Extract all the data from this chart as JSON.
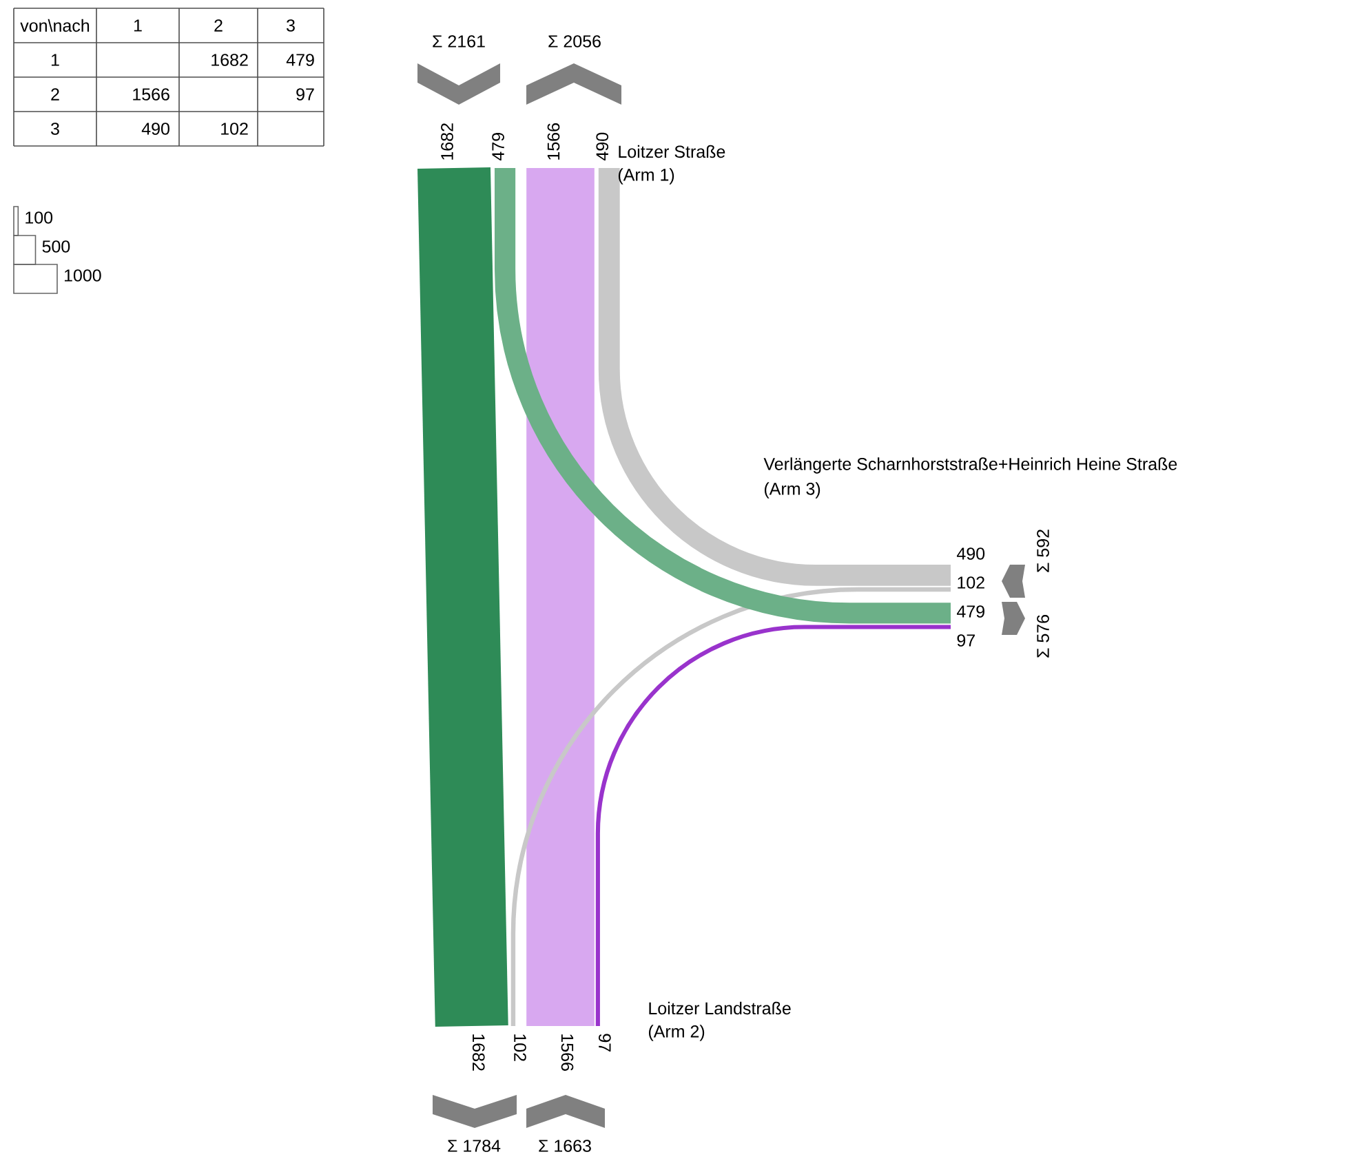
{
  "chart_data": [
    {
      "type": "heatmap",
      "legend_title": "von\\nach",
      "categories": [
        "1",
        "2",
        "3"
      ],
      "y_categories": [
        "1",
        "2",
        "3"
      ],
      "cells": [
        [
          null,
          1682,
          479
        ],
        [
          1566,
          null,
          97
        ],
        [
          490,
          102,
          null
        ]
      ],
      "data_labels": true
    },
    {
      "type": "other",
      "colors": [
        "#2e8b57",
        "#6cb088",
        "#d8a8f0",
        "#9933cc",
        "#c8c8c8",
        "#c8c8c8"
      ],
      "totals": [
        "Σ 2161",
        "Σ 2056",
        "Σ 1784",
        "Σ 1663",
        "Σ 592",
        "Σ 576"
      ],
      "annotations": [
        "Loitzer Straße",
        "(Arm 1)",
        "Loitzer Landstraße",
        "(Arm 2)",
        "Verlängerte Scharnhorststraße+Heinrich Heine Straße",
        "(Arm 3)",
        "100",
        "500",
        "1000",
        "1682",
        "479",
        "1566",
        "490",
        "1682",
        "102",
        "1566",
        "97",
        "490",
        "102",
        "479",
        "97"
      ]
    }
  ]
}
